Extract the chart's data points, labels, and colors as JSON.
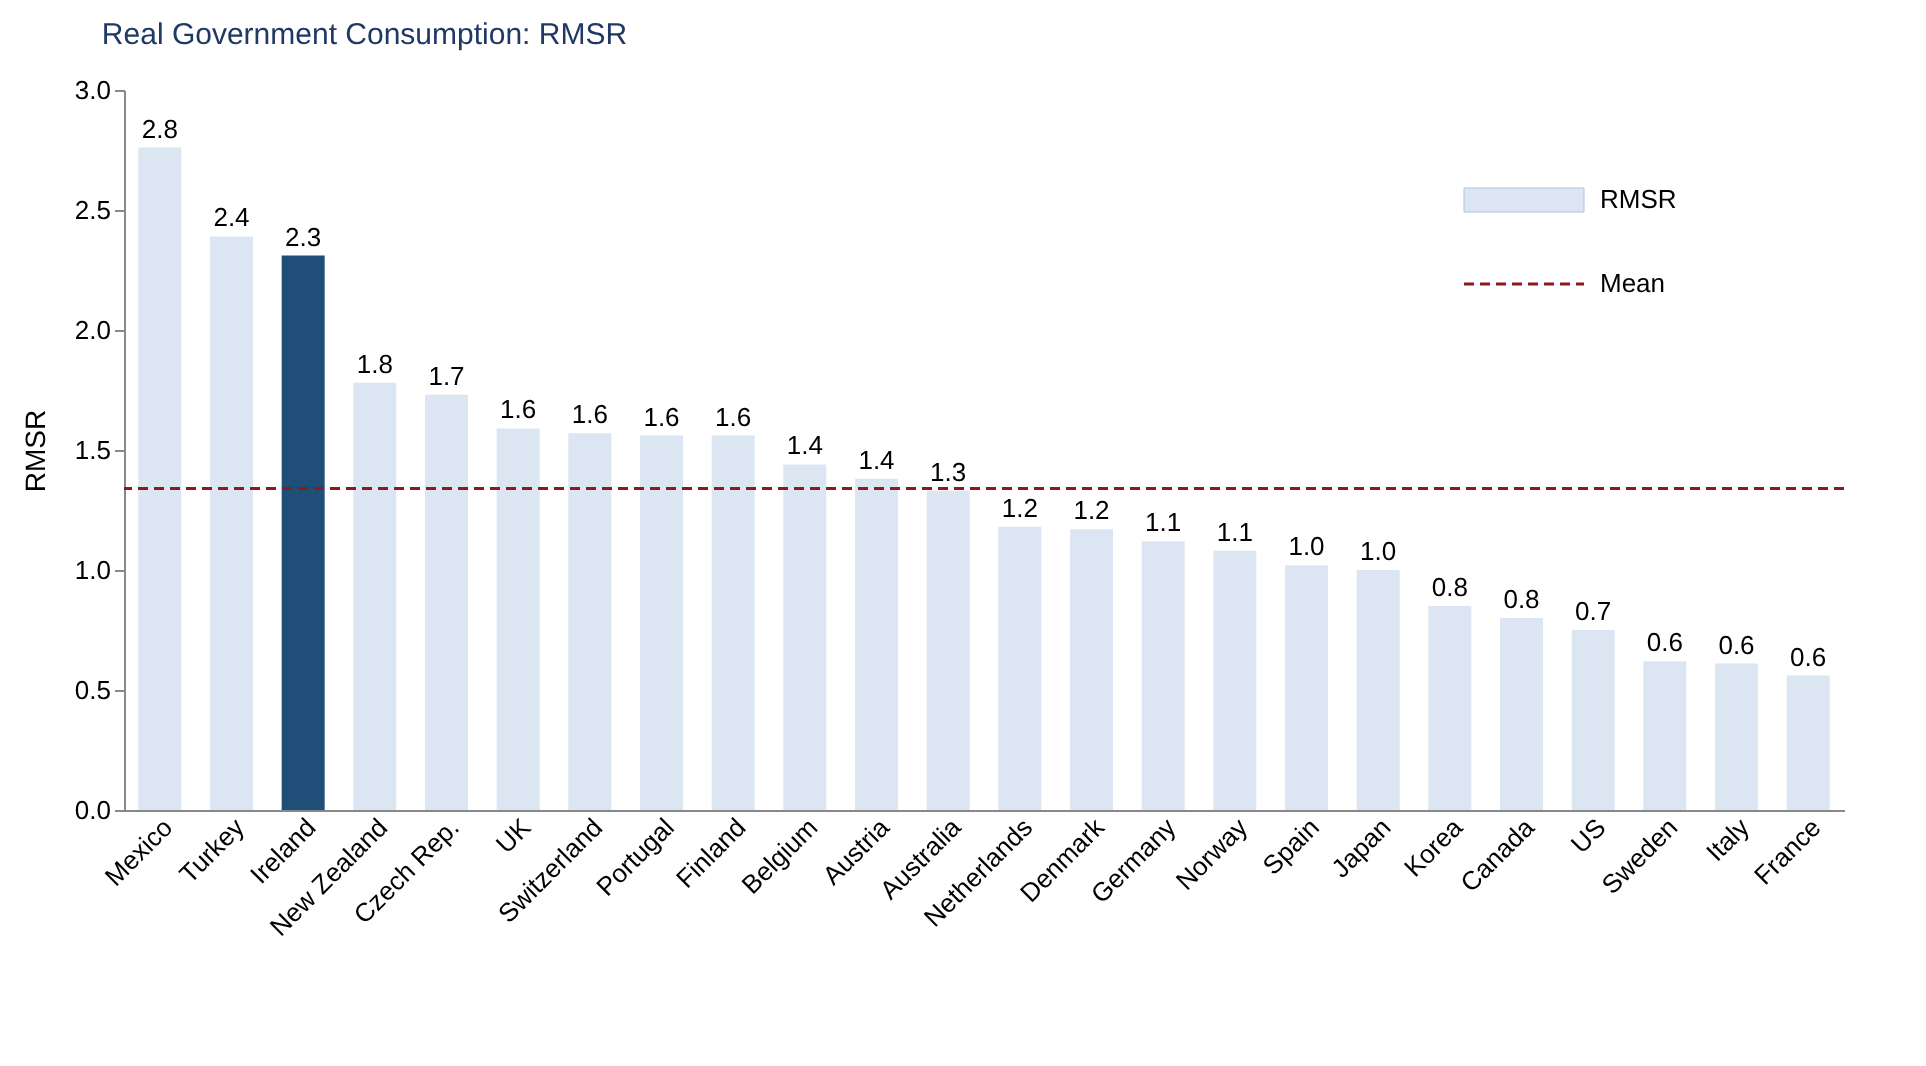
{
  "chart_data": {
    "type": "bar",
    "title": "Real Government Consumption: RMSR",
    "ylabel": "RMSR",
    "categories": [
      "Mexico",
      "Turkey",
      "Ireland",
      "New Zealand",
      "Czech Rep.",
      "UK",
      "Switzerland",
      "Portugal",
      "Finland",
      "Belgium",
      "Austria",
      "Australia",
      "Netherlands",
      "Denmark",
      "Germany",
      "Norway",
      "Spain",
      "Japan",
      "Korea",
      "Canada",
      "US",
      "Sweden",
      "Italy",
      "France"
    ],
    "series": [
      {
        "name": "RMSR",
        "color": "#dce6f2",
        "colors": [
          "#dce6f2",
          "#dce6f2",
          "#1f4e79",
          "#dce6f2",
          "#dce6f2",
          "#dce6f2",
          "#dce6f2",
          "#dce6f2",
          "#dce6f2",
          "#dce6f2",
          "#dce6f2",
          "#dce6f2",
          "#dce6f2",
          "#dce6f2",
          "#dce6f2",
          "#dce6f2",
          "#dce6f2",
          "#dce6f2",
          "#dce6f2",
          "#dce6f2",
          "#dce6f2",
          "#dce6f2",
          "#dce6f2",
          "#dce6f2"
        ],
        "values": [
          2.76,
          2.39,
          2.31,
          1.78,
          1.73,
          1.59,
          1.57,
          1.56,
          1.56,
          1.44,
          1.38,
          1.33,
          1.18,
          1.17,
          1.12,
          1.08,
          1.02,
          1.0,
          0.85,
          0.8,
          0.75,
          0.62,
          0.61,
          0.56
        ],
        "value_labels": [
          "2.8",
          "2.4",
          "2.3",
          "1.8",
          "1.7",
          "1.6",
          "1.6",
          "1.6",
          "1.6",
          "1.4",
          "1.4",
          "1.3",
          "1.2",
          "1.2",
          "1.1",
          "1.1",
          "1.0",
          "1.0",
          "0.8",
          "0.8",
          "0.7",
          "0.6",
          "0.6",
          "0.6"
        ]
      }
    ],
    "ylim": [
      0,
      3.0
    ],
    "yticks": [
      {
        "value": 0,
        "label": "0.0"
      },
      {
        "value": 0.5,
        "label": "0.5"
      },
      {
        "value": 1.0,
        "label": "1.0"
      },
      {
        "value": 1.5,
        "label": "1.5"
      },
      {
        "value": 2.0,
        "label": "2.0"
      },
      {
        "value": 2.5,
        "label": "2.5"
      },
      {
        "value": 3.0,
        "label": "3.0"
      }
    ],
    "ref_lines": [
      {
        "axis": "y",
        "value": 1.34,
        "label": "Mean",
        "color": "#8b1a1a",
        "line_style": "dashed"
      }
    ],
    "grid": false,
    "legend": "top right"
  }
}
